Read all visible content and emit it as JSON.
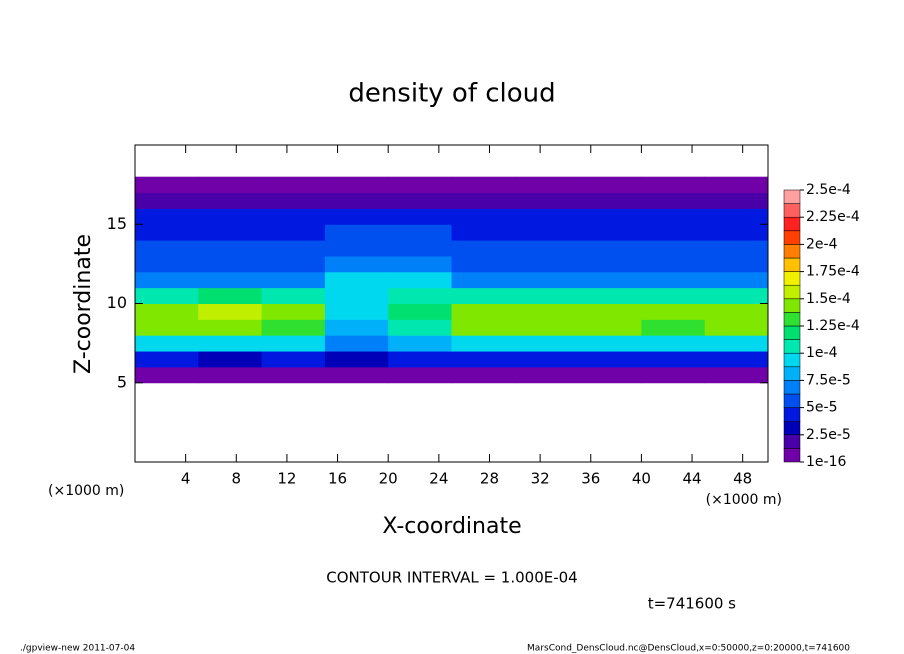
{
  "chart_data": {
    "type": "contour",
    "title": "density of cloud",
    "xlabel": "X-coordinate",
    "ylabel": "Z-coordinate",
    "xunit": "(×1000 m)",
    "xunit_right": "(×1000 m)",
    "annotation": "CONTOUR INTERVAL = 1.000E-04",
    "time_label": "t=741600 s",
    "footer_left": "./gpview-new   2011-07-04",
    "footer_right": "MarsCond_DensCloud.nc@DensCloud,x=0:50000,z=0:20000,t=741600",
    "xlim": [
      0,
      50
    ],
    "ylim": [
      0,
      20
    ],
    "xticks": [
      4,
      8,
      12,
      16,
      20,
      24,
      28,
      32,
      36,
      40,
      44,
      48
    ],
    "yticks": [
      5,
      10,
      15
    ],
    "x": [
      2.5,
      7.5,
      12.5,
      17.5,
      22.5,
      27.5,
      32.5,
      37.5,
      42.5,
      47.5
    ],
    "z": [
      5.5,
      6.5,
      7.5,
      8.5,
      9.5,
      10.5,
      11.5,
      12.5,
      13.5,
      14.5,
      15.5,
      16.5,
      17.5
    ],
    "values": [
      [
        1e-05,
        5e-06,
        8e-06,
        3e-06,
        3e-06,
        5e-06,
        8e-06,
        5e-06,
        3e-06,
        8e-06
      ],
      [
        4e-05,
        3.5e-05,
        4e-05,
        3e-05,
        4e-05,
        5e-05,
        4.5e-05,
        4e-05,
        4e-05,
        4e-05
      ],
      [
        9e-05,
        0.0001,
        9e-05,
        7e-05,
        8e-05,
        0.0001,
        0.0001,
        9e-05,
        9e-05,
        0.0001
      ],
      [
        0.00014,
        0.00015,
        0.00013,
        8e-05,
        0.00011,
        0.00014,
        0.00014,
        0.00015,
        0.00013,
        0.00014
      ],
      [
        0.00015,
        0.00016,
        0.00014,
        9e-05,
        0.00012,
        0.00015,
        0.00014,
        0.00015,
        0.00014,
        0.00015
      ],
      [
        0.00011,
        0.00012,
        0.00011,
        0.0001,
        0.00011,
        0.00011,
        0.00011,
        0.00011,
        0.00011,
        0.00011
      ],
      [
        7e-05,
        7e-05,
        7e-05,
        9e-05,
        9e-05,
        7e-05,
        7e-05,
        7e-05,
        7e-05,
        7e-05
      ],
      [
        6e-05,
        6e-05,
        6e-05,
        7e-05,
        7e-05,
        6e-05,
        6e-05,
        6e-05,
        6e-05,
        6e-05
      ],
      [
        5.5e-05,
        5.5e-05,
        5.5e-05,
        6e-05,
        6e-05,
        5.5e-05,
        5.5e-05,
        5.5e-05,
        5.5e-05,
        5.5e-05
      ],
      [
        5e-05,
        5e-05,
        5e-05,
        5.5e-05,
        5.5e-05,
        5e-05,
        5e-05,
        5e-05,
        5e-05,
        5e-05
      ],
      [
        4e-05,
        4e-05,
        4e-05,
        4e-05,
        4e-05,
        4e-05,
        4e-05,
        4e-05,
        4e-05,
        4e-05
      ],
      [
        2e-05,
        2e-05,
        2e-05,
        2e-05,
        2e-05,
        2e-05,
        2e-05,
        2e-05,
        2e-05,
        2e-05
      ],
      [
        3e-06,
        3e-06,
        3e-06,
        3e-06,
        3e-06,
        3e-06,
        3e-06,
        3e-06,
        3e-06,
        3e-06
      ]
    ],
    "levels": [
      {
        "value": 1e-16,
        "label": "1e-16"
      },
      {
        "value": 2.5e-05,
        "label": "2.5e-5"
      },
      {
        "value": 5e-05,
        "label": "5e-5"
      },
      {
        "value": 7.5e-05,
        "label": "7.5e-5"
      },
      {
        "value": 0.0001,
        "label": "1e-4"
      },
      {
        "value": 0.000125,
        "label": "1.25e-4"
      },
      {
        "value": 0.00015,
        "label": "1.5e-4"
      },
      {
        "value": 0.000175,
        "label": "1.75e-4"
      },
      {
        "value": 0.0002,
        "label": "2e-4"
      },
      {
        "value": 0.000225,
        "label": "2.25e-4"
      },
      {
        "value": 0.00025,
        "label": "2.5e-4"
      }
    ],
    "colors": [
      "#7000a8",
      "#4a00a8",
      "#0000b8",
      "#0018e0",
      "#0050f0",
      "#0080f8",
      "#00b0f8",
      "#00d8f0",
      "#00e8b0",
      "#00e070",
      "#30e030",
      "#80e800",
      "#c0f000",
      "#f0f000",
      "#ffc000",
      "#ff8000",
      "#ff4000",
      "#ff2020",
      "#ff6060",
      "#ffa0a0"
    ]
  }
}
